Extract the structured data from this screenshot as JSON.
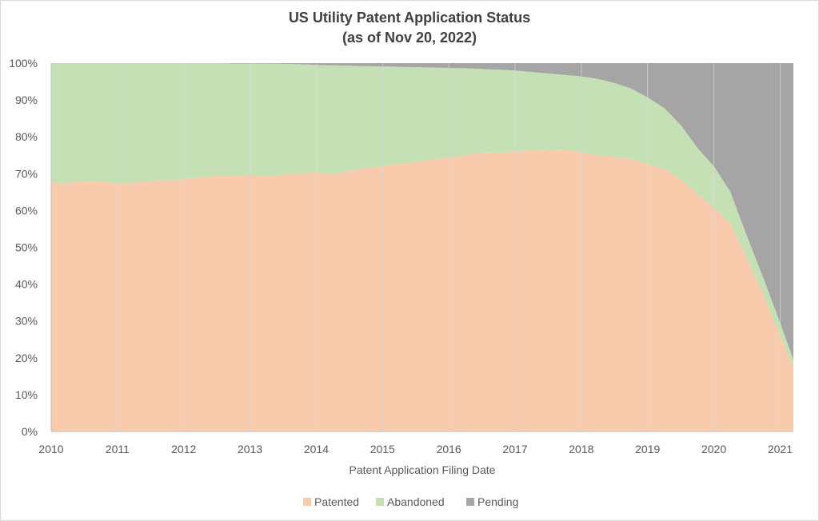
{
  "chart_data": {
    "type": "area",
    "stacked": true,
    "percent": true,
    "title": "US Utility Patent Application Status",
    "subtitle": "(as of Nov 20, 2022)",
    "xlabel": "Patent Application Filing Date",
    "ylabel": "",
    "xlim": [
      2010,
      2021.2
    ],
    "ylim": [
      0,
      100
    ],
    "x_ticks": [
      "2010",
      "2011",
      "2012",
      "2013",
      "2014",
      "2015",
      "2016",
      "2017",
      "2018",
      "2019",
      "2020",
      "2021"
    ],
    "y_ticks": [
      "0%",
      "10%",
      "20%",
      "30%",
      "40%",
      "50%",
      "60%",
      "70%",
      "80%",
      "90%",
      "100%"
    ],
    "grid": "vertical",
    "legend_position": "bottom",
    "x": [
      2010.0,
      2010.25,
      2010.5,
      2010.75,
      2011.0,
      2011.25,
      2011.5,
      2011.75,
      2012.0,
      2012.25,
      2012.5,
      2012.75,
      2013.0,
      2013.25,
      2013.5,
      2013.75,
      2014.0,
      2014.25,
      2014.5,
      2014.75,
      2015.0,
      2015.25,
      2015.5,
      2015.75,
      2016.0,
      2016.25,
      2016.5,
      2016.75,
      2017.0,
      2017.25,
      2017.5,
      2017.75,
      2018.0,
      2018.25,
      2018.5,
      2018.75,
      2019.0,
      2019.25,
      2019.5,
      2019.75,
      2020.0,
      2020.25,
      2020.5,
      2020.75,
      2021.0,
      2021.2
    ],
    "series": [
      {
        "name": "Patented",
        "color": "#f8cbad",
        "values": [
          67.3,
          67.5,
          67.8,
          67.9,
          67.3,
          67.5,
          68.0,
          68.2,
          68.5,
          69.0,
          69.4,
          69.3,
          69.8,
          69.3,
          69.8,
          70.0,
          70.4,
          69.8,
          70.8,
          71.5,
          72.0,
          72.6,
          73.2,
          73.8,
          74.3,
          75.0,
          75.8,
          75.5,
          76.0,
          76.4,
          76.6,
          76.5,
          75.8,
          75.0,
          74.6,
          74.0,
          72.6,
          71.2,
          68.6,
          64.5,
          60.8,
          56.5,
          47.0,
          37.0,
          26.0,
          17.5
        ]
      },
      {
        "name": "Abandoned",
        "color": "#c5e0b4",
        "values": [
          32.7,
          32.5,
          32.2,
          32.1,
          32.7,
          32.5,
          32.0,
          31.8,
          31.5,
          31.0,
          30.6,
          30.6,
          30.1,
          30.6,
          30.0,
          29.7,
          29.1,
          29.6,
          28.5,
          27.7,
          27.1,
          26.4,
          25.7,
          25.0,
          24.4,
          23.6,
          22.6,
          22.7,
          22.0,
          21.2,
          20.6,
          20.3,
          20.6,
          20.7,
          20.0,
          19.1,
          18.1,
          16.6,
          14.6,
          12.5,
          11.2,
          8.5,
          6.0,
          4.5,
          3.5,
          2.0
        ]
      },
      {
        "name": "Pending",
        "color": "#a5a5a5",
        "values": [
          0.0,
          0.0,
          0.0,
          0.0,
          0.0,
          0.0,
          0.0,
          0.0,
          0.0,
          0.0,
          0.0,
          0.1,
          0.1,
          0.1,
          0.2,
          0.3,
          0.5,
          0.6,
          0.7,
          0.8,
          0.9,
          1.0,
          1.1,
          1.2,
          1.3,
          1.4,
          1.6,
          1.8,
          2.0,
          2.4,
          2.8,
          3.2,
          3.6,
          4.3,
          5.4,
          6.9,
          9.3,
          12.2,
          16.8,
          23.0,
          28.0,
          35.0,
          47.0,
          58.5,
          70.5,
          80.5
        ]
      }
    ]
  }
}
